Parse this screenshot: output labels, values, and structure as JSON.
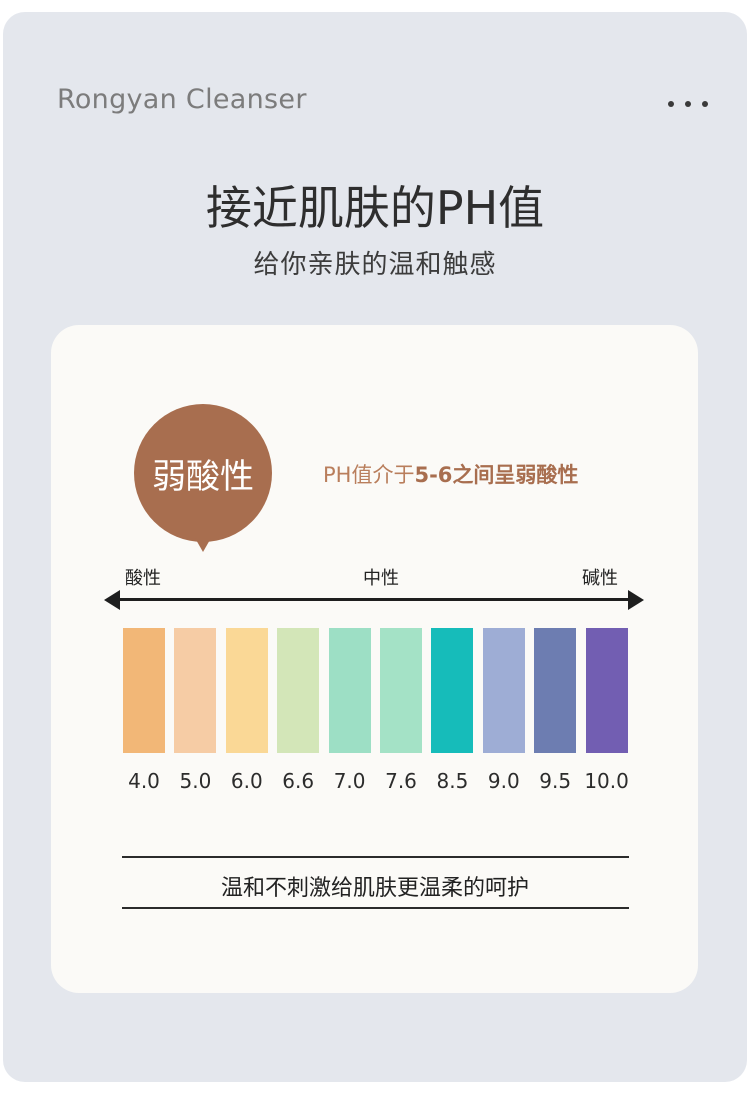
{
  "header": {
    "brand": "Rongyan Cleanser",
    "menu_icon": "more-horizontal-icon"
  },
  "hero": {
    "title": "接近肌肤的PH值",
    "subtitle": "给你亲肤的温和触感"
  },
  "card": {
    "badge": "弱酸性",
    "badge_color": "#a86e4f",
    "note_prefix": "PH值介于",
    "note_highlight": "5-6之间呈弱酸性",
    "scale_labels": {
      "acid": "酸性",
      "neutral": "中性",
      "alkaline": "碱性"
    },
    "swatches": [
      {
        "value": "4.0",
        "color": "#f2b777"
      },
      {
        "value": "5.0",
        "color": "#f6cca5"
      },
      {
        "value": "6.0",
        "color": "#fad896"
      },
      {
        "value": "6.6",
        "color": "#d3e6b8"
      },
      {
        "value": "7.0",
        "color": "#9ddfc5"
      },
      {
        "value": "7.6",
        "color": "#a4e2c6"
      },
      {
        "value": "8.5",
        "color": "#16bcba"
      },
      {
        "value": "9.0",
        "color": "#9eadd5"
      },
      {
        "value": "9.5",
        "color": "#6d7db1"
      },
      {
        "value": "10.0",
        "color": "#725eb2"
      }
    ],
    "claim": "温和不刺激给肌肤更温柔的呵护"
  }
}
